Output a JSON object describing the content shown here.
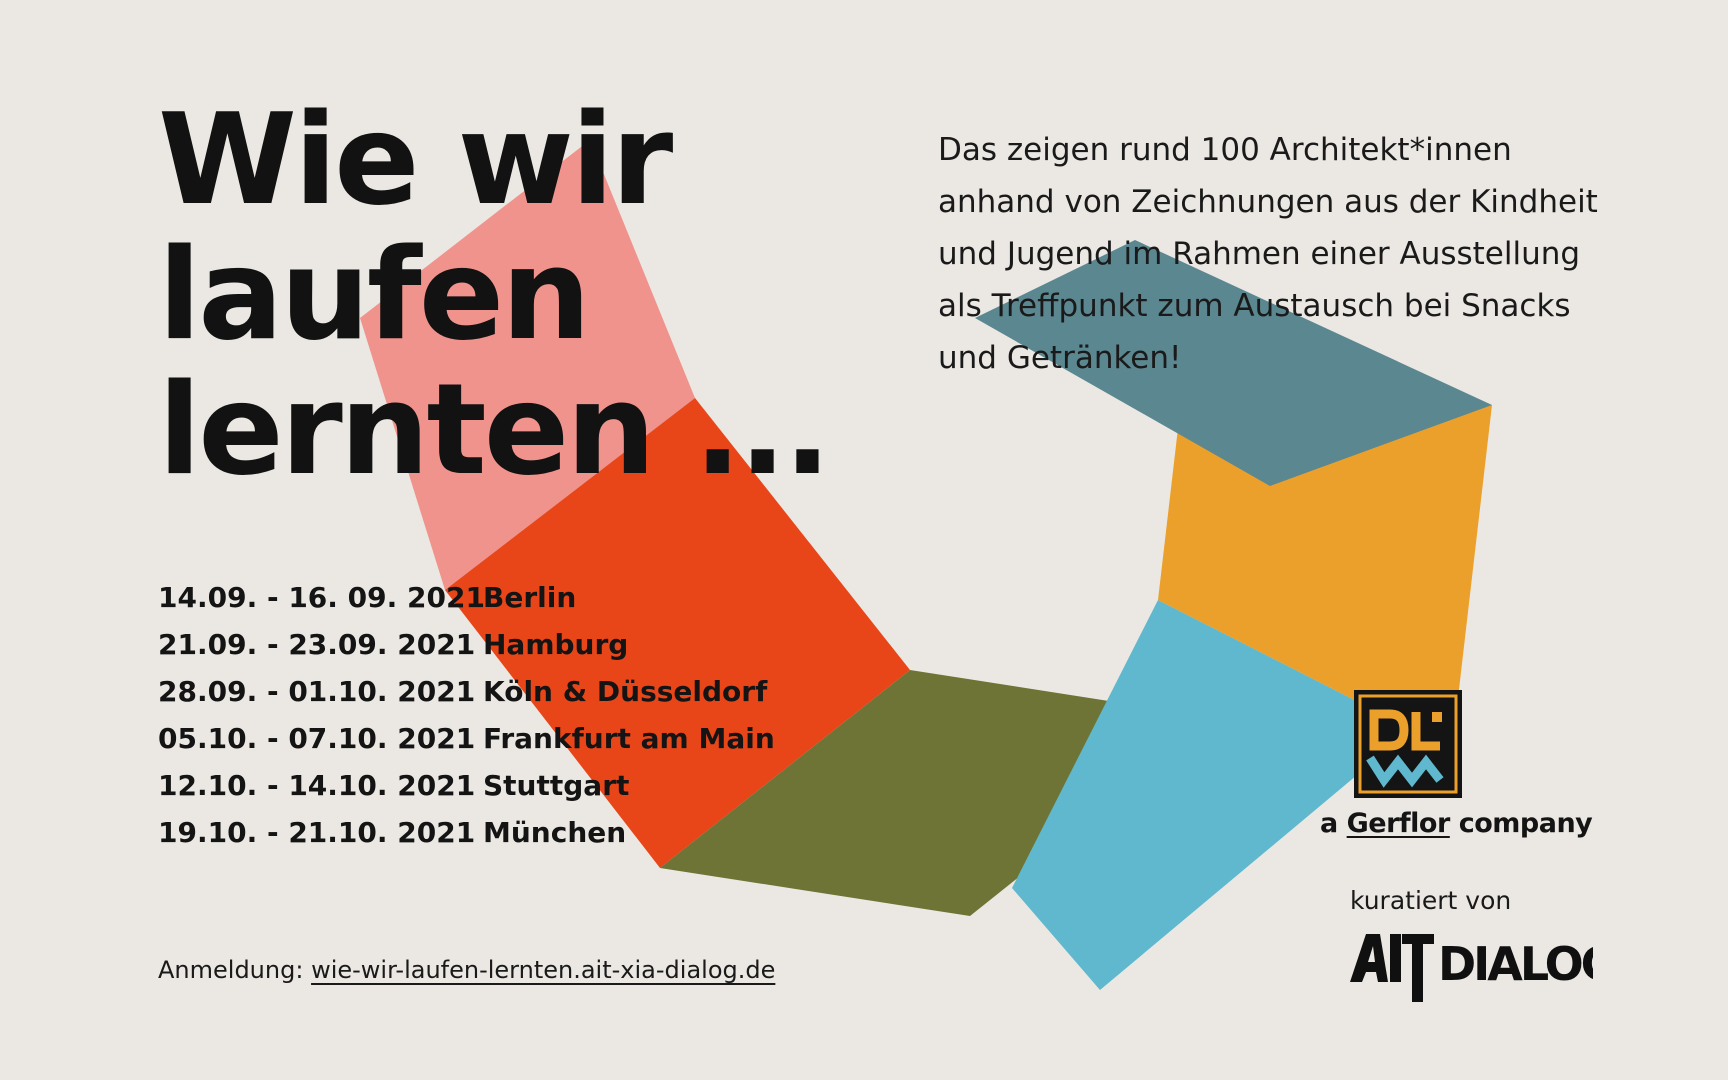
{
  "colors": {
    "background": "#ebe8e3",
    "pink": "#f0938c",
    "red_orange": "#e84619",
    "olive": "#6d7435",
    "light_blue": "#5fb8cd",
    "orange": "#eba02b",
    "slate": "#5b8791",
    "text": "#141414"
  },
  "headline": {
    "line1": "Wie wir",
    "line2": "laufen",
    "line3": "lernten ..."
  },
  "intro": {
    "line1": "Das zeigen rund 100 Architekt*innen",
    "line2": "anhand von Zeichnungen aus der Kindheit",
    "line3": "und Jugend im Rahmen einer Ausstellung",
    "line4": "als Treffpunkt zum Austausch bei Snacks",
    "line5": "und Getränken!"
  },
  "dates": [
    {
      "range": "14.09. - 16. 09. 2021",
      "city": "Berlin"
    },
    {
      "range": "21.09. - 23.09. 2021",
      "city": "Hamburg"
    },
    {
      "range": "28.09. - 01.10. 2021",
      "city": "Köln & Düsseldorf"
    },
    {
      "range": "05.10. - 07.10. 2021",
      "city": "Frankfurt am Main"
    },
    {
      "range": "12.10. - 14.10. 2021",
      "city": "Stuttgart"
    },
    {
      "range": "19.10. - 21.10. 2021",
      "city": "München"
    }
  ],
  "registration": {
    "label": "Anmeldung:",
    "url": "wie-wir-laufen-lernten.ait-xia-dialog.de"
  },
  "sponsor": {
    "logo_text": "DLW",
    "prefix": "a",
    "brand": "Gerflor",
    "suffix": "company"
  },
  "curator": {
    "label": "kuratiert von",
    "logo_text": "AIT DIALOG"
  }
}
